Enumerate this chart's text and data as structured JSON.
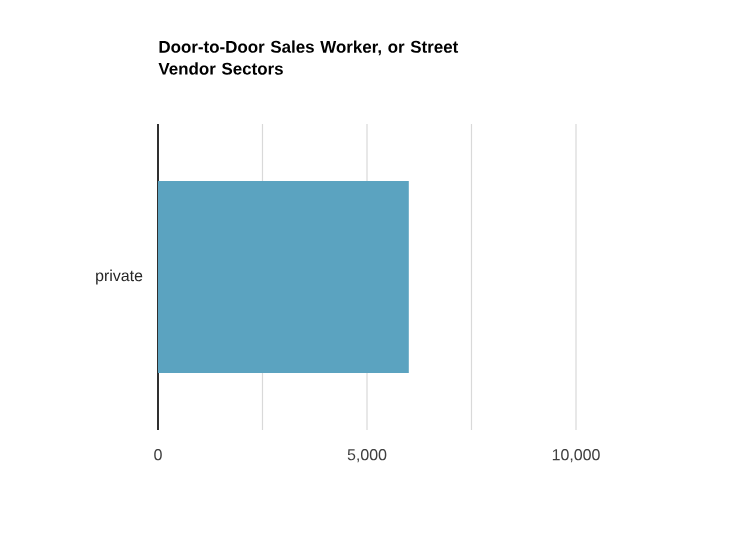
{
  "chart_data": {
    "type": "bar",
    "orientation": "horizontal",
    "title": "Door-to-Door Sales Worker, or Street Vendor Sectors",
    "categories": [
      "private"
    ],
    "values": [
      6000
    ],
    "color": "#5ba3c0",
    "xlim": [
      0,
      10000
    ],
    "xticks": [
      0,
      {
        "value": 2500,
        "label": null
      },
      {
        "value": 5000,
        "label": "5,000"
      },
      {
        "value": 7500,
        "label": null
      },
      {
        "value": 10000,
        "label": "10,000"
      }
    ],
    "grid": "x"
  }
}
